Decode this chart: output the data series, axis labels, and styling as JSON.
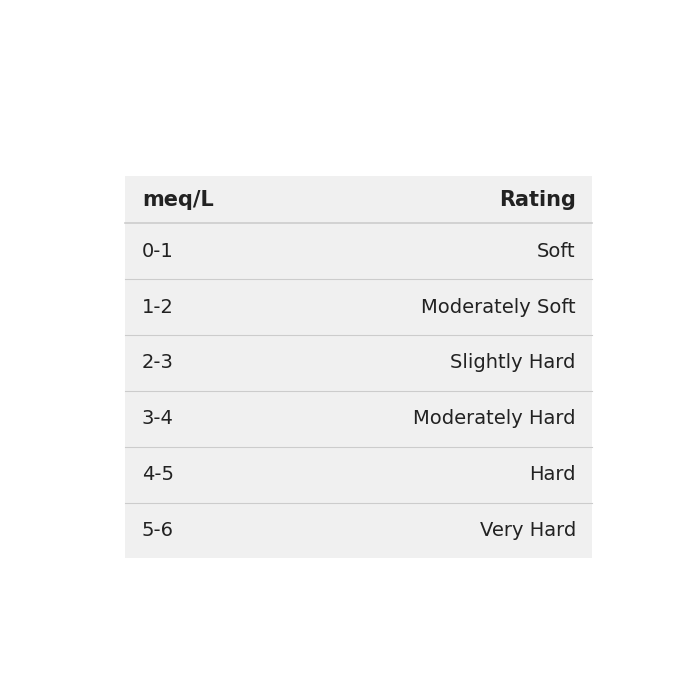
{
  "header": [
    "meq/L",
    "Rating"
  ],
  "rows": [
    [
      "0-1",
      "Soft"
    ],
    [
      "1-2",
      "Moderately Soft"
    ],
    [
      "2-3",
      "Slightly Hard"
    ],
    [
      "3-4",
      "Moderately Hard"
    ],
    [
      "4-5",
      "Hard"
    ],
    [
      "5-6",
      "Very Hard"
    ]
  ],
  "outer_bg": "#ffffff",
  "table_bg": "#f0f0f0",
  "header_font_size": 15,
  "row_font_size": 14,
  "text_color": "#222222",
  "divider_color": "#cccccc",
  "header_font_weight": "bold",
  "row_font_weight": "normal"
}
